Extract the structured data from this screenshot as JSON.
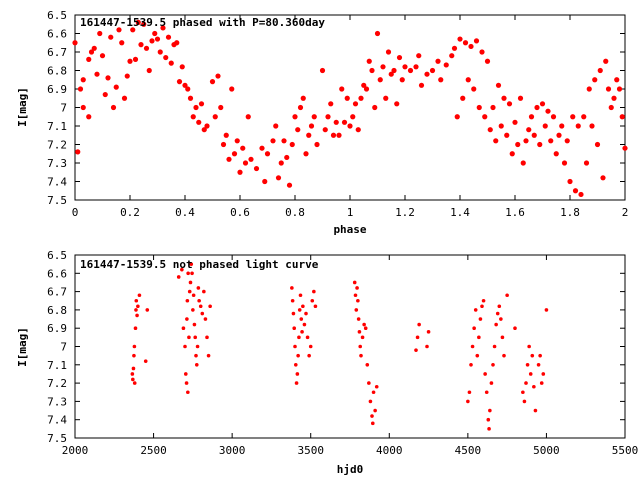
{
  "colors": {
    "marker": "#ff0000",
    "axis": "#000000",
    "background": "#ffffff"
  },
  "chart_data": [
    {
      "type": "scatter",
      "title": "161447-1539.5 phased with P=80.360day",
      "xlabel": "phase",
      "ylabel": "I[mag]",
      "xlim": [
        0,
        2
      ],
      "ylim": [
        6.5,
        7.5
      ],
      "y_inverted": true,
      "xticks": [
        "0",
        "0.2",
        "0.4",
        "0.6",
        "0.8",
        "1",
        "1.2",
        "1.4",
        "1.6",
        "1.8",
        "2"
      ],
      "yticks": [
        "6.5",
        "6.6",
        "6.7",
        "6.8",
        "6.9",
        "7",
        "7.1",
        "7.2",
        "7.3",
        "7.4",
        "7.5"
      ],
      "grid": false,
      "legend": "none",
      "points": [
        [
          0.0,
          6.65
        ],
        [
          0.01,
          7.24
        ],
        [
          0.02,
          6.9
        ],
        [
          0.03,
          6.85
        ],
        [
          0.03,
          7.0
        ],
        [
          0.05,
          6.74
        ],
        [
          0.05,
          7.05
        ],
        [
          0.06,
          6.7
        ],
        [
          0.07,
          6.68
        ],
        [
          0.08,
          6.82
        ],
        [
          0.09,
          6.6
        ],
        [
          0.1,
          6.72
        ],
        [
          0.11,
          6.93
        ],
        [
          0.12,
          6.84
        ],
        [
          0.13,
          6.62
        ],
        [
          0.14,
          7.0
        ],
        [
          0.15,
          6.89
        ],
        [
          0.16,
          6.58
        ],
        [
          0.17,
          6.65
        ],
        [
          0.18,
          6.95
        ],
        [
          0.19,
          6.83
        ],
        [
          0.2,
          6.75
        ],
        [
          0.21,
          6.58
        ],
        [
          0.22,
          6.74
        ],
        [
          0.23,
          6.54
        ],
        [
          0.24,
          6.66
        ],
        [
          0.25,
          6.55
        ],
        [
          0.26,
          6.68
        ],
        [
          0.27,
          6.8
        ],
        [
          0.28,
          6.64
        ],
        [
          0.29,
          6.6
        ],
        [
          0.3,
          6.63
        ],
        [
          0.31,
          6.7
        ],
        [
          0.32,
          6.57
        ],
        [
          0.33,
          6.73
        ],
        [
          0.34,
          6.62
        ],
        [
          0.35,
          6.76
        ],
        [
          0.36,
          6.66
        ],
        [
          0.37,
          6.65
        ],
        [
          0.38,
          6.86
        ],
        [
          0.39,
          6.78
        ],
        [
          0.4,
          6.88
        ],
        [
          0.41,
          6.9
        ],
        [
          0.42,
          6.95
        ],
        [
          0.43,
          7.05
        ],
        [
          0.44,
          7.0
        ],
        [
          0.45,
          7.08
        ],
        [
          0.46,
          6.98
        ],
        [
          0.47,
          7.12
        ],
        [
          0.48,
          7.1
        ],
        [
          0.5,
          6.86
        ],
        [
          0.51,
          7.05
        ],
        [
          0.52,
          6.83
        ],
        [
          0.53,
          7.0
        ],
        [
          0.54,
          7.2
        ],
        [
          0.55,
          7.15
        ],
        [
          0.56,
          7.28
        ],
        [
          0.57,
          6.9
        ],
        [
          0.58,
          7.25
        ],
        [
          0.59,
          7.18
        ],
        [
          0.6,
          7.35
        ],
        [
          0.61,
          7.22
        ],
        [
          0.62,
          7.3
        ],
        [
          0.63,
          7.05
        ],
        [
          0.64,
          7.28
        ],
        [
          0.66,
          7.33
        ],
        [
          0.68,
          7.22
        ],
        [
          0.69,
          7.4
        ],
        [
          0.7,
          7.25
        ],
        [
          0.72,
          7.18
        ],
        [
          0.73,
          7.1
        ],
        [
          0.74,
          7.38
        ],
        [
          0.75,
          7.3
        ],
        [
          0.76,
          7.18
        ],
        [
          0.77,
          7.27
        ],
        [
          0.78,
          7.42
        ],
        [
          0.79,
          7.2
        ],
        [
          0.8,
          7.05
        ],
        [
          0.81,
          7.12
        ],
        [
          0.82,
          7.0
        ],
        [
          0.83,
          6.95
        ],
        [
          0.84,
          7.25
        ],
        [
          0.85,
          7.15
        ],
        [
          0.86,
          7.1
        ],
        [
          0.87,
          7.05
        ],
        [
          0.88,
          7.2
        ],
        [
          0.9,
          6.8
        ],
        [
          0.91,
          7.12
        ],
        [
          0.92,
          7.05
        ],
        [
          0.93,
          6.98
        ],
        [
          0.94,
          7.15
        ],
        [
          0.95,
          7.08
        ],
        [
          0.96,
          7.15
        ],
        [
          0.97,
          6.9
        ],
        [
          0.98,
          7.08
        ],
        [
          0.99,
          6.95
        ],
        [
          1.0,
          7.1
        ],
        [
          1.01,
          7.05
        ],
        [
          1.02,
          6.98
        ],
        [
          1.03,
          7.12
        ],
        [
          1.04,
          6.95
        ],
        [
          1.05,
          6.88
        ],
        [
          1.06,
          6.9
        ],
        [
          1.07,
          6.75
        ],
        [
          1.08,
          6.8
        ],
        [
          1.09,
          7.0
        ],
        [
          1.1,
          6.6
        ],
        [
          1.11,
          6.85
        ],
        [
          1.12,
          6.78
        ],
        [
          1.13,
          6.95
        ],
        [
          1.14,
          6.7
        ],
        [
          1.15,
          6.82
        ],
        [
          1.16,
          6.8
        ],
        [
          1.17,
          6.98
        ],
        [
          1.18,
          6.73
        ],
        [
          1.19,
          6.85
        ],
        [
          1.2,
          6.78
        ],
        [
          1.22,
          6.8
        ],
        [
          1.24,
          6.78
        ],
        [
          1.25,
          6.72
        ],
        [
          1.26,
          6.88
        ],
        [
          1.28,
          6.82
        ],
        [
          1.3,
          6.8
        ],
        [
          1.32,
          6.75
        ],
        [
          1.33,
          6.85
        ],
        [
          1.35,
          6.77
        ],
        [
          1.37,
          6.72
        ],
        [
          1.38,
          6.68
        ],
        [
          1.39,
          7.05
        ],
        [
          1.4,
          6.63
        ],
        [
          1.41,
          6.95
        ],
        [
          1.42,
          6.65
        ],
        [
          1.43,
          6.85
        ],
        [
          1.44,
          6.67
        ],
        [
          1.45,
          6.9
        ],
        [
          1.46,
          6.64
        ],
        [
          1.47,
          7.0
        ],
        [
          1.48,
          6.7
        ],
        [
          1.49,
          7.05
        ],
        [
          1.5,
          6.75
        ],
        [
          1.51,
          7.12
        ],
        [
          1.52,
          7.0
        ],
        [
          1.53,
          7.18
        ],
        [
          1.54,
          6.88
        ],
        [
          1.55,
          7.1
        ],
        [
          1.56,
          6.95
        ],
        [
          1.57,
          7.15
        ],
        [
          1.58,
          6.98
        ],
        [
          1.59,
          7.25
        ],
        [
          1.6,
          7.08
        ],
        [
          1.61,
          7.2
        ],
        [
          1.62,
          6.95
        ],
        [
          1.63,
          7.3
        ],
        [
          1.64,
          7.18
        ],
        [
          1.65,
          7.12
        ],
        [
          1.66,
          7.05
        ],
        [
          1.67,
          7.15
        ],
        [
          1.68,
          7.0
        ],
        [
          1.69,
          7.2
        ],
        [
          1.7,
          6.98
        ],
        [
          1.71,
          7.1
        ],
        [
          1.72,
          7.02
        ],
        [
          1.73,
          7.18
        ],
        [
          1.74,
          7.05
        ],
        [
          1.75,
          7.25
        ],
        [
          1.76,
          7.15
        ],
        [
          1.77,
          7.1
        ],
        [
          1.78,
          7.3
        ],
        [
          1.79,
          7.18
        ],
        [
          1.8,
          7.4
        ],
        [
          1.81,
          7.05
        ],
        [
          1.82,
          7.45
        ],
        [
          1.83,
          7.1
        ],
        [
          1.84,
          7.47
        ],
        [
          1.85,
          7.05
        ],
        [
          1.86,
          7.3
        ],
        [
          1.87,
          6.9
        ],
        [
          1.88,
          7.1
        ],
        [
          1.89,
          6.85
        ],
        [
          1.9,
          7.2
        ],
        [
          1.91,
          6.8
        ],
        [
          1.92,
          7.38
        ],
        [
          1.93,
          6.75
        ],
        [
          1.94,
          6.9
        ],
        [
          1.95,
          7.0
        ],
        [
          1.96,
          6.95
        ],
        [
          1.97,
          6.85
        ],
        [
          1.98,
          6.9
        ],
        [
          1.99,
          7.05
        ],
        [
          2.0,
          7.22
        ]
      ]
    },
    {
      "type": "scatter",
      "title": "161447-1539.5 not phased light curve",
      "xlabel": "hjd0",
      "ylabel": "I[mag]",
      "xlim": [
        2000,
        5500
      ],
      "ylim": [
        6.5,
        7.5
      ],
      "y_inverted": true,
      "xticks": [
        "2000",
        "2500",
        "3000",
        "3500",
        "4000",
        "4500",
        "5000",
        "5500"
      ],
      "yticks": [
        "6.5",
        "6.6",
        "6.7",
        "6.8",
        "6.9",
        "7",
        "7.1",
        "7.2",
        "7.3",
        "7.4",
        "7.5"
      ],
      "grid": false,
      "legend": "none",
      "points": [
        [
          2365,
          7.15
        ],
        [
          2368,
          7.18
        ],
        [
          2372,
          7.12
        ],
        [
          2375,
          7.05
        ],
        [
          2378,
          7.0
        ],
        [
          2380,
          7.2
        ],
        [
          2385,
          6.9
        ],
        [
          2388,
          6.8
        ],
        [
          2390,
          6.75
        ],
        [
          2395,
          6.83
        ],
        [
          2400,
          6.78
        ],
        [
          2410,
          6.72
        ],
        [
          2450,
          7.08
        ],
        [
          2460,
          6.8
        ],
        [
          2660,
          6.62
        ],
        [
          2680,
          6.58
        ],
        [
          2690,
          6.9
        ],
        [
          2700,
          7.0
        ],
        [
          2705,
          7.15
        ],
        [
          2710,
          7.2
        ],
        [
          2712,
          6.85
        ],
        [
          2715,
          6.75
        ],
        [
          2718,
          7.25
        ],
        [
          2720,
          6.6
        ],
        [
          2725,
          6.95
        ],
        [
          2730,
          6.7
        ],
        [
          2735,
          6.65
        ],
        [
          2740,
          6.55
        ],
        [
          2745,
          6.6
        ],
        [
          2750,
          6.8
        ],
        [
          2755,
          6.72
        ],
        [
          2760,
          6.88
        ],
        [
          2765,
          6.95
        ],
        [
          2770,
          7.05
        ],
        [
          2775,
          7.1
        ],
        [
          2780,
          7.0
        ],
        [
          2785,
          6.68
        ],
        [
          2790,
          6.75
        ],
        [
          2800,
          6.78
        ],
        [
          2810,
          6.82
        ],
        [
          2820,
          6.7
        ],
        [
          2830,
          6.85
        ],
        [
          2840,
          6.95
        ],
        [
          2850,
          7.05
        ],
        [
          2860,
          6.78
        ],
        [
          3380,
          6.68
        ],
        [
          3385,
          6.75
        ],
        [
          3390,
          6.82
        ],
        [
          3395,
          6.9
        ],
        [
          3400,
          7.0
        ],
        [
          3405,
          7.1
        ],
        [
          3410,
          7.2
        ],
        [
          3415,
          7.15
        ],
        [
          3420,
          7.05
        ],
        [
          3425,
          6.95
        ],
        [
          3430,
          6.8
        ],
        [
          3435,
          6.72
        ],
        [
          3440,
          6.85
        ],
        [
          3445,
          6.92
        ],
        [
          3450,
          6.78
        ],
        [
          3460,
          6.88
        ],
        [
          3470,
          6.82
        ],
        [
          3480,
          6.95
        ],
        [
          3490,
          7.05
        ],
        [
          3500,
          7.0
        ],
        [
          3510,
          6.75
        ],
        [
          3520,
          6.7
        ],
        [
          3530,
          6.78
        ],
        [
          3780,
          6.65
        ],
        [
          3785,
          6.72
        ],
        [
          3790,
          6.8
        ],
        [
          3795,
          6.68
        ],
        [
          3800,
          6.75
        ],
        [
          3805,
          6.85
        ],
        [
          3810,
          6.92
        ],
        [
          3815,
          7.0
        ],
        [
          3820,
          7.05
        ],
        [
          3830,
          6.95
        ],
        [
          3840,
          6.88
        ],
        [
          3850,
          6.9
        ],
        [
          3860,
          7.1
        ],
        [
          3870,
          7.2
        ],
        [
          3880,
          7.3
        ],
        [
          3890,
          7.38
        ],
        [
          3895,
          7.42
        ],
        [
          3900,
          7.25
        ],
        [
          3910,
          7.35
        ],
        [
          3920,
          7.22
        ],
        [
          4170,
          7.02
        ],
        [
          4180,
          6.95
        ],
        [
          4190,
          6.88
        ],
        [
          4240,
          7.0
        ],
        [
          4250,
          6.92
        ],
        [
          4500,
          7.3
        ],
        [
          4510,
          7.25
        ],
        [
          4520,
          7.1
        ],
        [
          4530,
          7.0
        ],
        [
          4540,
          6.9
        ],
        [
          4550,
          6.8
        ],
        [
          4560,
          7.05
        ],
        [
          4570,
          6.95
        ],
        [
          4580,
          6.85
        ],
        [
          4590,
          6.78
        ],
        [
          4600,
          6.75
        ],
        [
          4610,
          7.15
        ],
        [
          4620,
          7.25
        ],
        [
          4630,
          7.4
        ],
        [
          4635,
          7.45
        ],
        [
          4640,
          7.35
        ],
        [
          4650,
          7.2
        ],
        [
          4660,
          7.1
        ],
        [
          4670,
          7.0
        ],
        [
          4680,
          6.88
        ],
        [
          4690,
          6.82
        ],
        [
          4700,
          6.78
        ],
        [
          4710,
          6.85
        ],
        [
          4720,
          6.95
        ],
        [
          4730,
          7.05
        ],
        [
          4750,
          6.72
        ],
        [
          4800,
          6.9
        ],
        [
          4850,
          7.25
        ],
        [
          4860,
          7.3
        ],
        [
          4870,
          7.2
        ],
        [
          4880,
          7.1
        ],
        [
          4890,
          7.0
        ],
        [
          4900,
          7.15
        ],
        [
          4910,
          7.05
        ],
        [
          4920,
          7.22
        ],
        [
          4930,
          7.35
        ],
        [
          4950,
          7.1
        ],
        [
          4960,
          7.05
        ],
        [
          4970,
          7.2
        ],
        [
          4980,
          7.15
        ],
        [
          5000,
          6.8
        ]
      ]
    }
  ]
}
